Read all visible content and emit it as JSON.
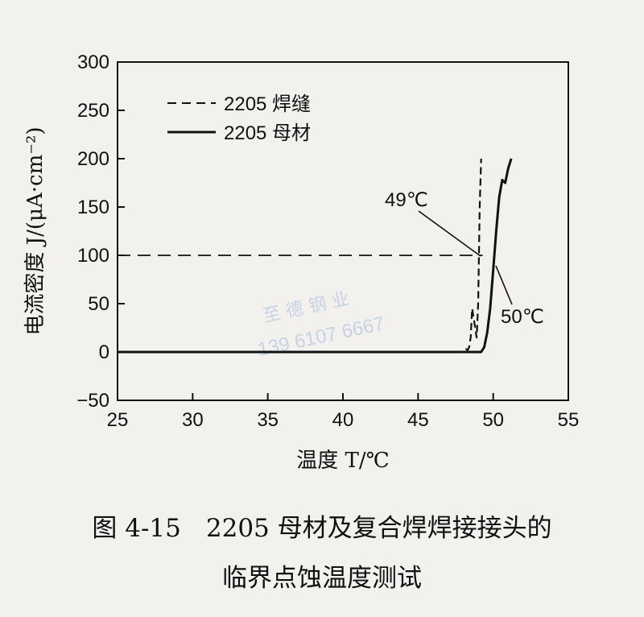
{
  "chart_data": {
    "type": "line",
    "xlabel": "温度 T/℃",
    "ylabel": "电流密度 J/(μA·cm⁻²)",
    "xlim": [
      25,
      55
    ],
    "ylim": [
      -50,
      300
    ],
    "xticks": [
      "25",
      "30",
      "35",
      "40",
      "45",
      "50",
      "55"
    ],
    "yticks": [
      "−50",
      "0",
      "50",
      "100",
      "150",
      "200",
      "250",
      "300"
    ],
    "legend_position": "top-left",
    "grid": false,
    "reference_line": {
      "y": 100,
      "style": "dashed"
    },
    "series": [
      {
        "name": "2205 焊缝",
        "style": "dashed",
        "x": [
          25,
          48.0,
          48.2,
          48.3,
          48.4,
          48.5,
          48.6,
          48.7,
          48.8,
          48.9,
          49.0,
          49.1,
          49.2
        ],
        "y": [
          0,
          0,
          3,
          2,
          5,
          15,
          45,
          35,
          25,
          15,
          50,
          150,
          200
        ]
      },
      {
        "name": "2205 母材",
        "style": "solid",
        "x": [
          25,
          49.2,
          49.4,
          49.6,
          49.8,
          50.0,
          50.2,
          50.4,
          50.6,
          50.8,
          51.0,
          51.2
        ],
        "y": [
          0,
          0,
          5,
          20,
          45,
          85,
          125,
          160,
          178,
          175,
          190,
          200
        ]
      }
    ],
    "annotations": [
      {
        "text": "49℃",
        "x": 49,
        "y": 100
      },
      {
        "text": "50℃",
        "x": 50,
        "y": 100
      }
    ]
  },
  "watermark": {
    "line1": "至 德 钢 业",
    "line2": "139 6107 6667"
  },
  "caption": {
    "line1": "图 4-15　2205 母材及复合焊焊接接头的",
    "line2": "临界点蚀温度测试"
  }
}
